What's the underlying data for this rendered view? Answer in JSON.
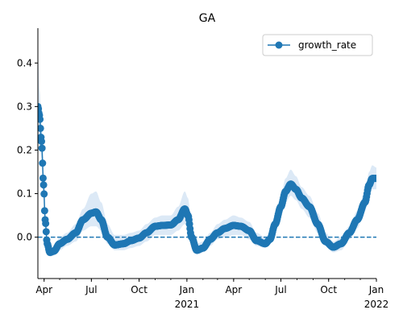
{
  "chart_data": {
    "type": "line",
    "title": "GA",
    "xlabel": "",
    "ylabel": "",
    "x_range": [
      "2020-03-20",
      "2022-01-01"
    ],
    "ylim": [
      -0.095,
      0.48
    ],
    "y_ticks": [
      0.0,
      0.1,
      0.2,
      0.3,
      0.4
    ],
    "y_tick_labels": [
      "0.0",
      "0.1",
      "0.2",
      "0.3",
      "0.4"
    ],
    "x_ticks": [
      {
        "date": "2020-04-01",
        "label": "Apr",
        "sublabel": ""
      },
      {
        "date": "2020-07-01",
        "label": "Jul",
        "sublabel": ""
      },
      {
        "date": "2020-10-01",
        "label": "Oct",
        "sublabel": ""
      },
      {
        "date": "2021-01-01",
        "label": "Jan",
        "sublabel": "2021"
      },
      {
        "date": "2021-04-01",
        "label": "Apr",
        "sublabel": ""
      },
      {
        "date": "2021-07-01",
        "label": "Jul",
        "sublabel": ""
      },
      {
        "date": "2021-10-01",
        "label": "Oct",
        "sublabel": ""
      },
      {
        "date": "2022-01-01",
        "label": "Jan",
        "sublabel": "2022"
      }
    ],
    "reference_line": {
      "y": 0.0,
      "style": "dashed"
    },
    "grid": false,
    "legend": {
      "position": "top-right"
    },
    "series": [
      {
        "name": "growth_rate",
        "color": "#1f77b4",
        "band_color": "#dce9f6",
        "marker": "circle",
        "points": [
          {
            "x": "2020-03-20",
            "y": 0.3,
            "lo": 0.23,
            "hi": 0.42
          },
          {
            "x": "2020-03-23",
            "y": 0.28,
            "lo": 0.22,
            "hi": 0.34
          },
          {
            "x": "2020-03-27",
            "y": 0.22,
            "lo": 0.18,
            "hi": 0.26
          },
          {
            "x": "2020-03-31",
            "y": 0.12,
            "lo": 0.095,
            "hi": 0.145
          },
          {
            "x": "2020-04-03",
            "y": 0.04,
            "lo": 0.025,
            "hi": 0.055
          },
          {
            "x": "2020-04-07",
            "y": -0.015,
            "lo": -0.025,
            "hi": -0.005
          },
          {
            "x": "2020-04-12",
            "y": -0.035,
            "lo": -0.045,
            "hi": -0.025
          },
          {
            "x": "2020-04-20",
            "y": -0.032,
            "lo": -0.042,
            "hi": -0.022
          },
          {
            "x": "2020-05-01",
            "y": -0.015,
            "lo": -0.03,
            "hi": 0.0
          },
          {
            "x": "2020-05-15",
            "y": -0.005,
            "lo": -0.02,
            "hi": 0.01
          },
          {
            "x": "2020-06-01",
            "y": 0.01,
            "lo": -0.01,
            "hi": 0.03
          },
          {
            "x": "2020-06-15",
            "y": 0.04,
            "lo": 0.015,
            "hi": 0.065
          },
          {
            "x": "2020-07-01",
            "y": 0.055,
            "lo": 0.025,
            "hi": 0.1
          },
          {
            "x": "2020-07-10",
            "y": 0.058,
            "lo": 0.025,
            "hi": 0.105
          },
          {
            "x": "2020-07-20",
            "y": 0.04,
            "lo": 0.015,
            "hi": 0.08
          },
          {
            "x": "2020-08-01",
            "y": 0.0,
            "lo": -0.015,
            "hi": 0.03
          },
          {
            "x": "2020-08-15",
            "y": -0.018,
            "lo": -0.03,
            "hi": 0.005
          },
          {
            "x": "2020-09-01",
            "y": -0.015,
            "lo": -0.03,
            "hi": 0.005
          },
          {
            "x": "2020-09-15",
            "y": -0.008,
            "lo": -0.025,
            "hi": 0.01
          },
          {
            "x": "2020-10-01",
            "y": -0.002,
            "lo": -0.02,
            "hi": 0.015
          },
          {
            "x": "2020-10-15",
            "y": 0.01,
            "lo": -0.01,
            "hi": 0.03
          },
          {
            "x": "2020-11-01",
            "y": 0.025,
            "lo": 0.005,
            "hi": 0.045
          },
          {
            "x": "2020-11-15",
            "y": 0.027,
            "lo": 0.005,
            "hi": 0.05
          },
          {
            "x": "2020-12-01",
            "y": 0.028,
            "lo": 0.005,
            "hi": 0.05
          },
          {
            "x": "2020-12-15",
            "y": 0.04,
            "lo": 0.015,
            "hi": 0.07
          },
          {
            "x": "2020-12-28",
            "y": 0.065,
            "lo": 0.03,
            "hi": 0.105
          },
          {
            "x": "2021-01-03",
            "y": 0.05,
            "lo": 0.02,
            "hi": 0.09
          },
          {
            "x": "2021-01-10",
            "y": 0.0,
            "lo": -0.015,
            "hi": 0.03
          },
          {
            "x": "2021-01-20",
            "y": -0.03,
            "lo": -0.04,
            "hi": -0.015
          },
          {
            "x": "2021-02-01",
            "y": -0.025,
            "lo": -0.035,
            "hi": -0.01
          },
          {
            "x": "2021-02-15",
            "y": -0.005,
            "lo": -0.02,
            "hi": 0.01
          },
          {
            "x": "2021-03-01",
            "y": 0.01,
            "lo": -0.005,
            "hi": 0.03
          },
          {
            "x": "2021-03-15",
            "y": 0.02,
            "lo": 0.0,
            "hi": 0.04
          },
          {
            "x": "2021-04-01",
            "y": 0.027,
            "lo": 0.005,
            "hi": 0.05
          },
          {
            "x": "2021-04-15",
            "y": 0.025,
            "lo": 0.005,
            "hi": 0.045
          },
          {
            "x": "2021-05-01",
            "y": 0.015,
            "lo": -0.005,
            "hi": 0.035
          },
          {
            "x": "2021-05-15",
            "y": -0.008,
            "lo": -0.02,
            "hi": 0.01
          },
          {
            "x": "2021-06-01",
            "y": -0.015,
            "lo": -0.025,
            "hi": 0.0
          },
          {
            "x": "2021-06-10",
            "y": -0.005,
            "lo": -0.015,
            "hi": 0.01
          },
          {
            "x": "2021-06-20",
            "y": 0.03,
            "lo": 0.015,
            "hi": 0.05
          },
          {
            "x": "2021-07-01",
            "y": 0.07,
            "lo": 0.05,
            "hi": 0.095
          },
          {
            "x": "2021-07-10",
            "y": 0.105,
            "lo": 0.08,
            "hi": 0.135
          },
          {
            "x": "2021-07-20",
            "y": 0.122,
            "lo": 0.095,
            "hi": 0.155
          },
          {
            "x": "2021-07-30",
            "y": 0.11,
            "lo": 0.085,
            "hi": 0.14
          },
          {
            "x": "2021-08-10",
            "y": 0.09,
            "lo": 0.065,
            "hi": 0.115
          },
          {
            "x": "2021-08-25",
            "y": 0.07,
            "lo": 0.045,
            "hi": 0.095
          },
          {
            "x": "2021-09-10",
            "y": 0.03,
            "lo": 0.01,
            "hi": 0.055
          },
          {
            "x": "2021-09-25",
            "y": -0.01,
            "lo": -0.02,
            "hi": 0.01
          },
          {
            "x": "2021-10-10",
            "y": -0.023,
            "lo": -0.035,
            "hi": -0.01
          },
          {
            "x": "2021-10-25",
            "y": -0.015,
            "lo": -0.03,
            "hi": 0.0
          },
          {
            "x": "2021-11-10",
            "y": 0.01,
            "lo": -0.005,
            "hi": 0.025
          },
          {
            "x": "2021-11-25",
            "y": 0.04,
            "lo": 0.02,
            "hi": 0.06
          },
          {
            "x": "2021-12-10",
            "y": 0.08,
            "lo": 0.06,
            "hi": 0.105
          },
          {
            "x": "2021-12-18",
            "y": 0.12,
            "lo": 0.1,
            "hi": 0.15
          },
          {
            "x": "2021-12-24",
            "y": 0.135,
            "lo": 0.11,
            "hi": 0.165
          },
          {
            "x": "2022-01-01",
            "y": 0.135,
            "lo": 0.11,
            "hi": 0.16
          }
        ]
      }
    ]
  }
}
